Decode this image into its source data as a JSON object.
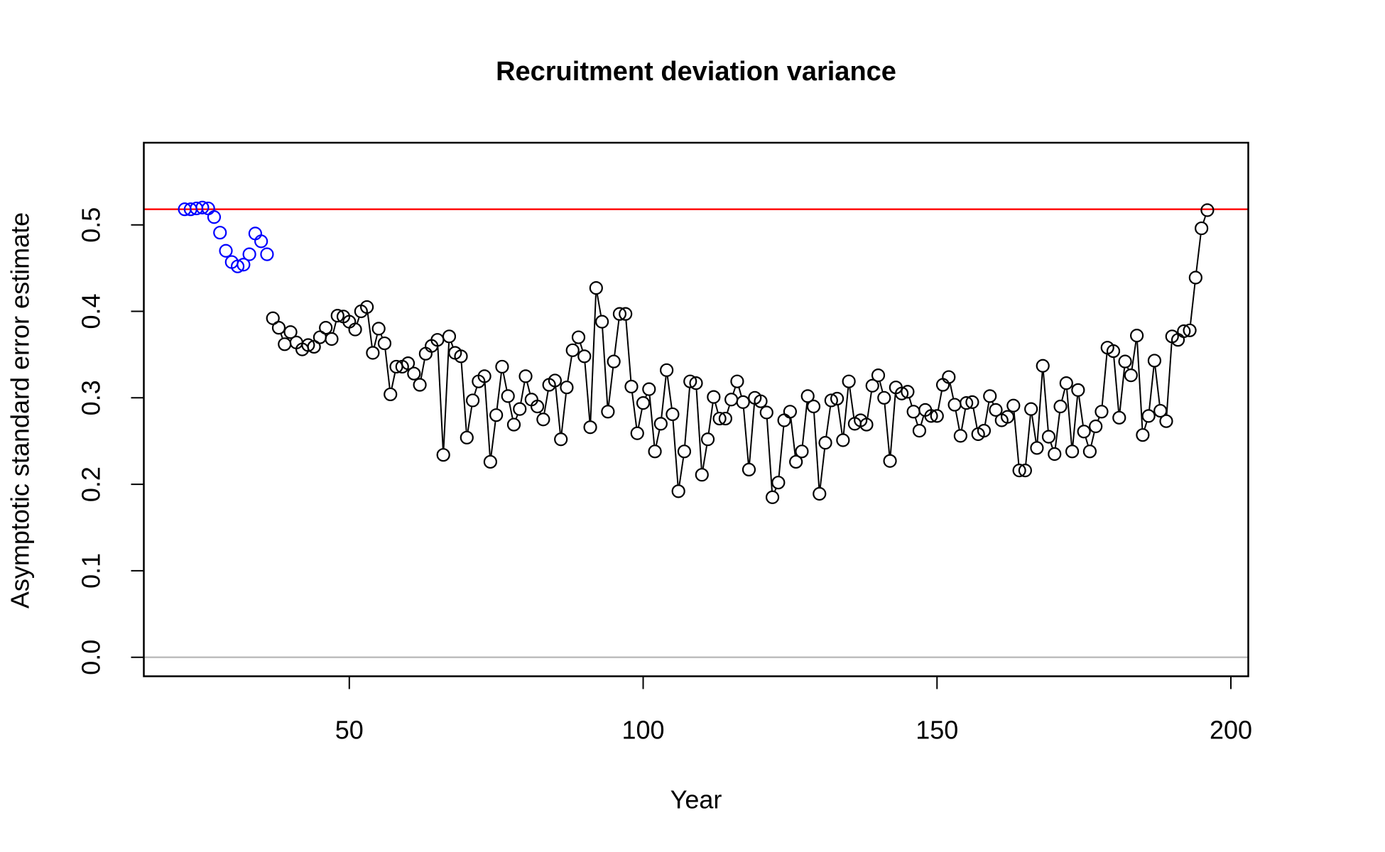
{
  "chart_data": {
    "type": "scatter",
    "title": "Recruitment deviation variance",
    "x_label": "Year",
    "y_label": "Asymptotic standard error estimate",
    "xlim": [
      15.04,
      202.96
    ],
    "ylim": [
      -0.022,
      0.595
    ],
    "xticks": [
      50,
      100,
      150,
      200
    ],
    "yticks": [
      {
        "value": 0,
        "label": "0.0"
      },
      0.1,
      0.2,
      0.3,
      0.4,
      0.5
    ],
    "hlines": [
      {
        "value": 0.518,
        "color": "#ff0000"
      },
      {
        "value": 0,
        "color": "#bebebe"
      }
    ],
    "series": [
      {
        "color": "#0000ff",
        "connect": false,
        "x": [
          22,
          23,
          24,
          25,
          26,
          27,
          28,
          29,
          30,
          31,
          32,
          33,
          34,
          35,
          36
        ],
        "values": [
          0.518,
          0.518,
          0.519,
          0.52,
          0.519,
          0.509,
          0.491,
          0.47,
          0.457,
          0.452,
          0.454,
          0.466,
          0.49,
          0.481,
          0.466
        ]
      },
      {
        "color": "#000000",
        "connect": true,
        "x": [
          37,
          38,
          39,
          40,
          41,
          42,
          43,
          44,
          45,
          46,
          47,
          48,
          49,
          50,
          51,
          52,
          53,
          54,
          55,
          56,
          57,
          58,
          59,
          60,
          61,
          62,
          63,
          64,
          65,
          66,
          67,
          68,
          69,
          70,
          71,
          72,
          73,
          74,
          75,
          76,
          77,
          78,
          79,
          80,
          81,
          82,
          83,
          84,
          85,
          86,
          87,
          88,
          89,
          90,
          91,
          92,
          93,
          94,
          95,
          96,
          97,
          98,
          99,
          100,
          101,
          102,
          103,
          104,
          105,
          106,
          107,
          108,
          109,
          110,
          111,
          112,
          113,
          114,
          115,
          116,
          117,
          118,
          119,
          120,
          121,
          122,
          123,
          124,
          125,
          126,
          127,
          128,
          129,
          130,
          131,
          132,
          133,
          134,
          135,
          136,
          137,
          138,
          139,
          140,
          141,
          142,
          143,
          144,
          145,
          146,
          147,
          148,
          149,
          150,
          151,
          152,
          153,
          154,
          155,
          156,
          157,
          158,
          159,
          160,
          161,
          162,
          163,
          164,
          165,
          166,
          167,
          168,
          169,
          170,
          171,
          172,
          173,
          174,
          175,
          176,
          177,
          178,
          179,
          180,
          181,
          182,
          183,
          184,
          185,
          186,
          187,
          188,
          189,
          190,
          191,
          192,
          193,
          194,
          195,
          196
        ],
        "values": [
          0.392,
          0.381,
          0.362,
          0.376,
          0.364,
          0.356,
          0.361,
          0.359,
          0.37,
          0.381,
          0.368,
          0.395,
          0.394,
          0.388,
          0.379,
          0.4,
          0.405,
          0.352,
          0.38,
          0.363,
          0.304,
          0.336,
          0.336,
          0.34,
          0.328,
          0.315,
          0.351,
          0.36,
          0.367,
          0.234,
          0.371,
          0.352,
          0.348,
          0.254,
          0.297,
          0.319,
          0.325,
          0.226,
          0.28,
          0.336,
          0.302,
          0.269,
          0.287,
          0.325,
          0.298,
          0.29,
          0.275,
          0.315,
          0.32,
          0.252,
          0.312,
          0.355,
          0.37,
          0.348,
          0.266,
          0.427,
          0.388,
          0.284,
          0.342,
          0.397,
          0.397,
          0.313,
          0.259,
          0.294,
          0.31,
          0.238,
          0.27,
          0.332,
          0.281,
          0.192,
          0.238,
          0.319,
          0.317,
          0.211,
          0.252,
          0.301,
          0.276,
          0.276,
          0.298,
          0.319,
          0.295,
          0.217,
          0.3,
          0.296,
          0.283,
          0.185,
          0.202,
          0.274,
          0.284,
          0.226,
          0.238,
          0.302,
          0.29,
          0.189,
          0.248,
          0.297,
          0.299,
          0.251,
          0.319,
          0.27,
          0.274,
          0.269,
          0.314,
          0.326,
          0.3,
          0.227,
          0.312,
          0.305,
          0.307,
          0.284,
          0.262,
          0.286,
          0.279,
          0.279,
          0.315,
          0.324,
          0.292,
          0.256,
          0.294,
          0.295,
          0.258,
          0.262,
          0.302,
          0.286,
          0.274,
          0.278,
          0.291,
          0.216,
          0.216,
          0.287,
          0.242,
          0.337,
          0.255,
          0.235,
          0.29,
          0.317,
          0.238,
          0.309,
          0.261,
          0.238,
          0.267,
          0.284,
          0.358,
          0.354,
          0.277,
          0.342,
          0.326,
          0.372,
          0.257,
          0.279,
          0.343,
          0.285,
          0.273,
          0.371,
          0.367,
          0.377,
          0.378,
          0.439,
          0.496,
          0.517
        ]
      }
    ]
  }
}
